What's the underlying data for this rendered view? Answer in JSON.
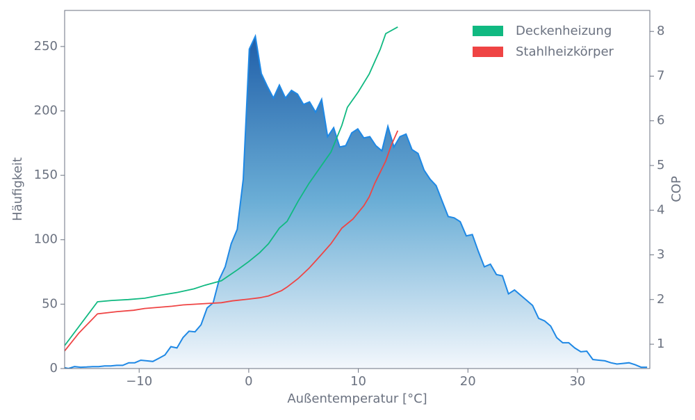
{
  "chart_data": {
    "type": "line",
    "xlabel": "Außentemperatur [°C]",
    "ylabel": "Häufigkeit",
    "y2label": "COP",
    "xlim": [
      -16.8,
      36.6
    ],
    "ylim": [
      0,
      278
    ],
    "y2lim": [
      0.456,
      8.47
    ],
    "xticks": [
      {
        "value": -10,
        "label": "−10"
      },
      0,
      10,
      20,
      30
    ],
    "yticks": [
      0,
      50,
      100,
      150,
      200,
      250
    ],
    "y2ticks": [
      1,
      2,
      3,
      4,
      5,
      6,
      7,
      8
    ],
    "legend": "upper-right",
    "series": [
      {
        "color": "#1e88e5",
        "fill": "area",
        "x": [
          -17,
          -16.45,
          -15.9,
          -15.35,
          -14.8,
          -14.25,
          -13.7,
          -13.15,
          -12.6,
          -12.05,
          -11.5,
          -10.95,
          -10.4,
          -9.85,
          -9.3,
          -8.75,
          -8.2,
          -7.65,
          -7.1,
          -6.55,
          -6,
          -5.45,
          -4.9,
          -4.35,
          -3.8,
          -3.25,
          -2.7,
          -2.15,
          -1.6,
          -1.05,
          -0.5,
          0.05,
          0.6,
          1.15,
          1.7,
          2.25,
          2.8,
          3.35,
          3.9,
          4.45,
          5,
          5.55,
          6.1,
          6.65,
          7.2,
          7.75,
          8.3,
          8.85,
          9.4,
          9.95,
          10.5,
          11.05,
          11.6,
          12.15,
          12.7,
          13.25,
          13.8,
          14.35,
          14.9,
          15.45,
          16,
          16.55,
          17.1,
          17.65,
          18.2,
          18.75,
          19.3,
          19.85,
          20.4,
          20.95,
          21.5,
          22.05,
          22.6,
          23.15,
          23.7,
          24.25,
          24.8,
          25.35,
          25.9,
          26.45,
          27,
          27.55,
          28.1,
          28.65,
          29.2,
          29.75,
          30.3,
          30.85,
          31.4,
          31.95,
          32.5,
          33.05,
          33.6,
          34.15,
          34.7,
          35.25,
          35.8,
          36.35
        ],
        "values": [
          1,
          0,
          1.5,
          1,
          1.2,
          1.5,
          1.5,
          2,
          2,
          2.5,
          2.5,
          4.5,
          4.5,
          6.5,
          6,
          5.5,
          8,
          10.5,
          17,
          16,
          24,
          29,
          28.5,
          34,
          47,
          51,
          69,
          79,
          97,
          108,
          147,
          248,
          258,
          229,
          219,
          210,
          220,
          210,
          216,
          213,
          205,
          207,
          199,
          209,
          180,
          187,
          172,
          173,
          183,
          186,
          179,
          180,
          173,
          169,
          188,
          172,
          180,
          182,
          170,
          167,
          154,
          147,
          142,
          130,
          118,
          117,
          114,
          103,
          104,
          91,
          79,
          81,
          73,
          72,
          58,
          61,
          57,
          53,
          49,
          39,
          37,
          33,
          24,
          20,
          20,
          16,
          13,
          13.5,
          7,
          6.5,
          6,
          4.5,
          3.5,
          4,
          4.5,
          3,
          1,
          1
        ]
      },
      {
        "name": "Deckenheizung",
        "color": "#10b981",
        "axis": "y2",
        "x": [
          -16.8,
          -13.8,
          -12.5,
          -11,
          -9.5,
          -8,
          -6.5,
          -5,
          -4,
          -2.5,
          -1,
          0,
          1,
          1.8,
          2.8,
          3.5,
          4.5,
          5.5,
          6.5,
          7.5,
          8.5,
          9,
          10,
          11,
          12,
          12.5,
          13.6
        ],
        "values": [
          0.97,
          1.95,
          1.98,
          2.0,
          2.03,
          2.1,
          2.16,
          2.24,
          2.32,
          2.42,
          2.67,
          2.85,
          3.05,
          3.25,
          3.6,
          3.75,
          4.2,
          4.6,
          4.95,
          5.3,
          5.9,
          6.3,
          6.65,
          7.05,
          7.6,
          7.95,
          8.1
        ]
      },
      {
        "name": "Stahlheizkörper",
        "color": "#ef4444",
        "axis": "y2",
        "x": [
          -16.8,
          -15.5,
          -13.8,
          -12,
          -10.5,
          -9.5,
          -7,
          -6,
          -4,
          -2.5,
          -1.5,
          0,
          1,
          1.8,
          3,
          3.5,
          4.5,
          5.5,
          6.5,
          7.5,
          8.5,
          9.5,
          10.5,
          11,
          11.5,
          12.5,
          13,
          13.6
        ],
        "values": [
          0.85,
          1.25,
          1.68,
          1.73,
          1.76,
          1.8,
          1.85,
          1.88,
          1.91,
          1.93,
          1.97,
          2.01,
          2.04,
          2.08,
          2.2,
          2.28,
          2.47,
          2.7,
          2.97,
          3.25,
          3.6,
          3.8,
          4.1,
          4.3,
          4.6,
          5.1,
          5.45,
          5.78
        ]
      }
    ]
  }
}
